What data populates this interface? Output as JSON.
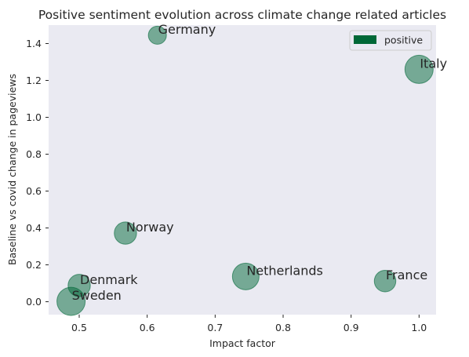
{
  "chart_data": {
    "type": "scatter",
    "title": "Positive sentiment evolution across climate change related articles",
    "xlabel": "Impact factor",
    "ylabel": "Baseline vs covid change in pageviews",
    "xlim": [
      0.455,
      1.025
    ],
    "ylim": [
      -0.07,
      1.5
    ],
    "xticks": [
      0.5,
      0.6,
      0.7,
      0.8,
      0.9,
      1.0
    ],
    "xtick_labels": [
      "0.5",
      "0.6",
      "0.7",
      "0.8",
      "0.9",
      "1.0"
    ],
    "yticks": [
      0.0,
      0.2,
      0.4,
      0.6,
      0.8,
      1.0,
      1.2,
      1.4
    ],
    "ytick_labels": [
      "0.0",
      "0.2",
      "0.4",
      "0.6",
      "0.8",
      "1.0",
      "1.2",
      "1.4"
    ],
    "grid": false,
    "legend": {
      "entries": [
        "positive"
      ],
      "position": "upper right"
    },
    "series": [
      {
        "name": "positive",
        "color": "#006837",
        "points": [
          {
            "label": "Germany",
            "x": 0.615,
            "y": 1.445,
            "size": 0.25
          },
          {
            "label": "Italy",
            "x": 1.0,
            "y": 1.26,
            "size": 1.0
          },
          {
            "label": "Norway",
            "x": 0.568,
            "y": 0.372,
            "size": 0.5
          },
          {
            "label": "Netherlands",
            "x": 0.745,
            "y": 0.137,
            "size": 0.85
          },
          {
            "label": "France",
            "x": 0.95,
            "y": 0.112,
            "size": 0.45
          },
          {
            "label": "Denmark",
            "x": 0.5,
            "y": 0.088,
            "size": 0.5
          },
          {
            "label": "Sweden",
            "x": 0.488,
            "y": 0.002,
            "size": 1.0
          }
        ]
      }
    ]
  }
}
